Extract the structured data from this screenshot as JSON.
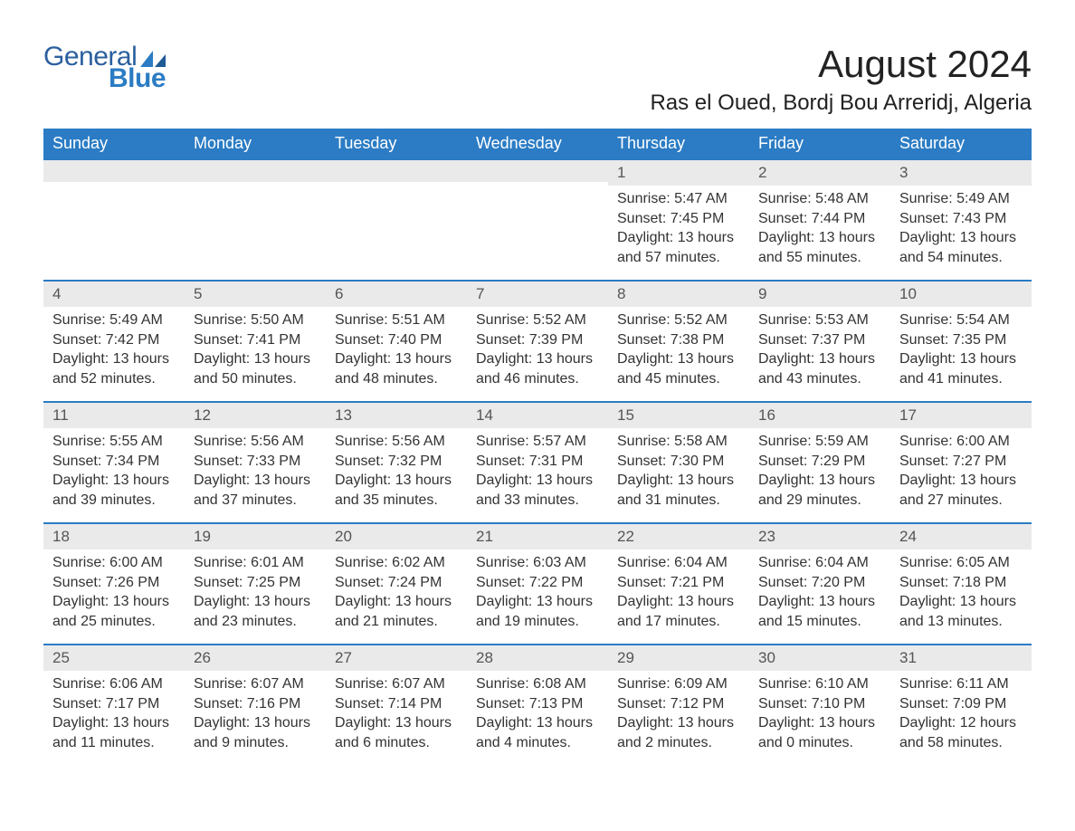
{
  "logo": {
    "text1": "General",
    "text2": "Blue"
  },
  "title": "August 2024",
  "location": "Ras el Oued, Bordj Bou Arreridj, Algeria",
  "colors": {
    "header_bg": "#2b7cc4",
    "header_fg": "#ffffff",
    "daynum_bg": "#eaeaea",
    "border_top": "#2b7cc4",
    "text": "#333333",
    "logo_general": "#2b5f9e",
    "logo_blue": "#2b7cc4"
  },
  "typography": {
    "title_fontsize": 42,
    "location_fontsize": 24,
    "header_fontsize": 18,
    "daynum_fontsize": 17,
    "body_fontsize": 16
  },
  "weekdays": [
    "Sunday",
    "Monday",
    "Tuesday",
    "Wednesday",
    "Thursday",
    "Friday",
    "Saturday"
  ],
  "weeks": [
    [
      null,
      null,
      null,
      null,
      {
        "n": "1",
        "sunrise": "5:47 AM",
        "sunset": "7:45 PM",
        "daylight_h": "13",
        "daylight_m": "57"
      },
      {
        "n": "2",
        "sunrise": "5:48 AM",
        "sunset": "7:44 PM",
        "daylight_h": "13",
        "daylight_m": "55"
      },
      {
        "n": "3",
        "sunrise": "5:49 AM",
        "sunset": "7:43 PM",
        "daylight_h": "13",
        "daylight_m": "54"
      }
    ],
    [
      {
        "n": "4",
        "sunrise": "5:49 AM",
        "sunset": "7:42 PM",
        "daylight_h": "13",
        "daylight_m": "52"
      },
      {
        "n": "5",
        "sunrise": "5:50 AM",
        "sunset": "7:41 PM",
        "daylight_h": "13",
        "daylight_m": "50"
      },
      {
        "n": "6",
        "sunrise": "5:51 AM",
        "sunset": "7:40 PM",
        "daylight_h": "13",
        "daylight_m": "48"
      },
      {
        "n": "7",
        "sunrise": "5:52 AM",
        "sunset": "7:39 PM",
        "daylight_h": "13",
        "daylight_m": "46"
      },
      {
        "n": "8",
        "sunrise": "5:52 AM",
        "sunset": "7:38 PM",
        "daylight_h": "13",
        "daylight_m": "45"
      },
      {
        "n": "9",
        "sunrise": "5:53 AM",
        "sunset": "7:37 PM",
        "daylight_h": "13",
        "daylight_m": "43"
      },
      {
        "n": "10",
        "sunrise": "5:54 AM",
        "sunset": "7:35 PM",
        "daylight_h": "13",
        "daylight_m": "41"
      }
    ],
    [
      {
        "n": "11",
        "sunrise": "5:55 AM",
        "sunset": "7:34 PM",
        "daylight_h": "13",
        "daylight_m": "39"
      },
      {
        "n": "12",
        "sunrise": "5:56 AM",
        "sunset": "7:33 PM",
        "daylight_h": "13",
        "daylight_m": "37"
      },
      {
        "n": "13",
        "sunrise": "5:56 AM",
        "sunset": "7:32 PM",
        "daylight_h": "13",
        "daylight_m": "35"
      },
      {
        "n": "14",
        "sunrise": "5:57 AM",
        "sunset": "7:31 PM",
        "daylight_h": "13",
        "daylight_m": "33"
      },
      {
        "n": "15",
        "sunrise": "5:58 AM",
        "sunset": "7:30 PM",
        "daylight_h": "13",
        "daylight_m": "31"
      },
      {
        "n": "16",
        "sunrise": "5:59 AM",
        "sunset": "7:29 PM",
        "daylight_h": "13",
        "daylight_m": "29"
      },
      {
        "n": "17",
        "sunrise": "6:00 AM",
        "sunset": "7:27 PM",
        "daylight_h": "13",
        "daylight_m": "27"
      }
    ],
    [
      {
        "n": "18",
        "sunrise": "6:00 AM",
        "sunset": "7:26 PM",
        "daylight_h": "13",
        "daylight_m": "25"
      },
      {
        "n": "19",
        "sunrise": "6:01 AM",
        "sunset": "7:25 PM",
        "daylight_h": "13",
        "daylight_m": "23"
      },
      {
        "n": "20",
        "sunrise": "6:02 AM",
        "sunset": "7:24 PM",
        "daylight_h": "13",
        "daylight_m": "21"
      },
      {
        "n": "21",
        "sunrise": "6:03 AM",
        "sunset": "7:22 PM",
        "daylight_h": "13",
        "daylight_m": "19"
      },
      {
        "n": "22",
        "sunrise": "6:04 AM",
        "sunset": "7:21 PM",
        "daylight_h": "13",
        "daylight_m": "17"
      },
      {
        "n": "23",
        "sunrise": "6:04 AM",
        "sunset": "7:20 PM",
        "daylight_h": "13",
        "daylight_m": "15"
      },
      {
        "n": "24",
        "sunrise": "6:05 AM",
        "sunset": "7:18 PM",
        "daylight_h": "13",
        "daylight_m": "13"
      }
    ],
    [
      {
        "n": "25",
        "sunrise": "6:06 AM",
        "sunset": "7:17 PM",
        "daylight_h": "13",
        "daylight_m": "11"
      },
      {
        "n": "26",
        "sunrise": "6:07 AM",
        "sunset": "7:16 PM",
        "daylight_h": "13",
        "daylight_m": "9"
      },
      {
        "n": "27",
        "sunrise": "6:07 AM",
        "sunset": "7:14 PM",
        "daylight_h": "13",
        "daylight_m": "6"
      },
      {
        "n": "28",
        "sunrise": "6:08 AM",
        "sunset": "7:13 PM",
        "daylight_h": "13",
        "daylight_m": "4"
      },
      {
        "n": "29",
        "sunrise": "6:09 AM",
        "sunset": "7:12 PM",
        "daylight_h": "13",
        "daylight_m": "2"
      },
      {
        "n": "30",
        "sunrise": "6:10 AM",
        "sunset": "7:10 PM",
        "daylight_h": "13",
        "daylight_m": "0"
      },
      {
        "n": "31",
        "sunrise": "6:11 AM",
        "sunset": "7:09 PM",
        "daylight_h": "12",
        "daylight_m": "58"
      }
    ]
  ],
  "labels": {
    "sunrise": "Sunrise:",
    "sunset": "Sunset:",
    "daylight_prefix": "Daylight:",
    "hours_word": "hours",
    "and_word": "and",
    "minutes_word": "minutes."
  }
}
